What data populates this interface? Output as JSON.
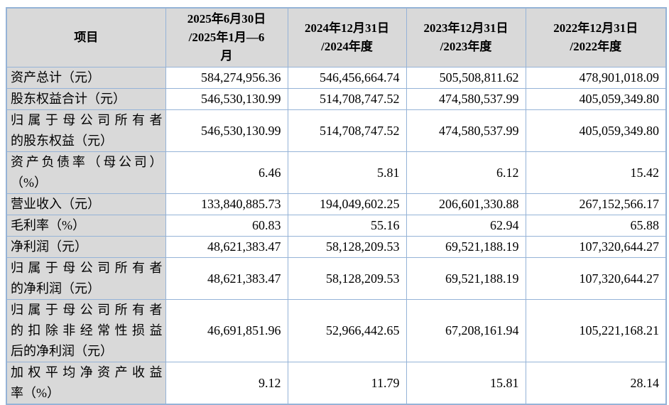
{
  "colors": {
    "border": "#95B3D7",
    "header_bg": "#D9D9D9"
  },
  "table": {
    "headers": [
      "项目",
      "2025年6月30日\n/2025年1月—6\n月",
      "2024年12月31日\n/2024年度",
      "2023年12月31日\n/2023年度",
      "2022年12月31日\n/2022年度"
    ],
    "rows": [
      {
        "label": [
          "资产总计（元）"
        ],
        "values": [
          "584,274,956.36",
          "546,456,664.74",
          "505,508,811.62",
          "478,901,018.09"
        ]
      },
      {
        "label": [
          "股东权益合计（元）"
        ],
        "values": [
          "546,530,130.99",
          "514,708,747.52",
          "474,580,537.99",
          "405,059,349.80"
        ]
      },
      {
        "label": [
          "归属于母公司所有者",
          "的股东权益（元）"
        ],
        "values": [
          "546,530,130.99",
          "514,708,747.52",
          "474,580,537.99",
          "405,059,349.80"
        ]
      },
      {
        "label": [
          "资产负债率（母公司）",
          "（%）"
        ],
        "values": [
          "6.46",
          "5.81",
          "6.12",
          "15.42"
        ]
      },
      {
        "label": [
          "营业收入（元）"
        ],
        "values": [
          "133,840,885.73",
          "194,049,602.25",
          "206,601,330.88",
          "267,152,566.17"
        ]
      },
      {
        "label": [
          "毛利率（%）"
        ],
        "values": [
          "60.83",
          "55.16",
          "62.94",
          "65.88"
        ]
      },
      {
        "label": [
          "净利润（元）"
        ],
        "values": [
          "48,621,383.47",
          "58,128,209.53",
          "69,521,188.19",
          "107,320,644.27"
        ]
      },
      {
        "label": [
          "归属于母公司所有者",
          "的净利润（元）"
        ],
        "values": [
          "48,621,383.47",
          "58,128,209.53",
          "69,521,188.19",
          "107,320,644.27"
        ]
      },
      {
        "label": [
          "归属于母公司所有者",
          "的扣除非经常性损益",
          "后的净利润（元）"
        ],
        "values": [
          "46,691,851.96",
          "52,966,442.65",
          "67,208,161.94",
          "105,221,168.21"
        ]
      },
      {
        "label": [
          "加权平均净资产收益",
          "率（%）"
        ],
        "values": [
          "9.12",
          "11.79",
          "15.81",
          "28.14"
        ]
      }
    ]
  }
}
